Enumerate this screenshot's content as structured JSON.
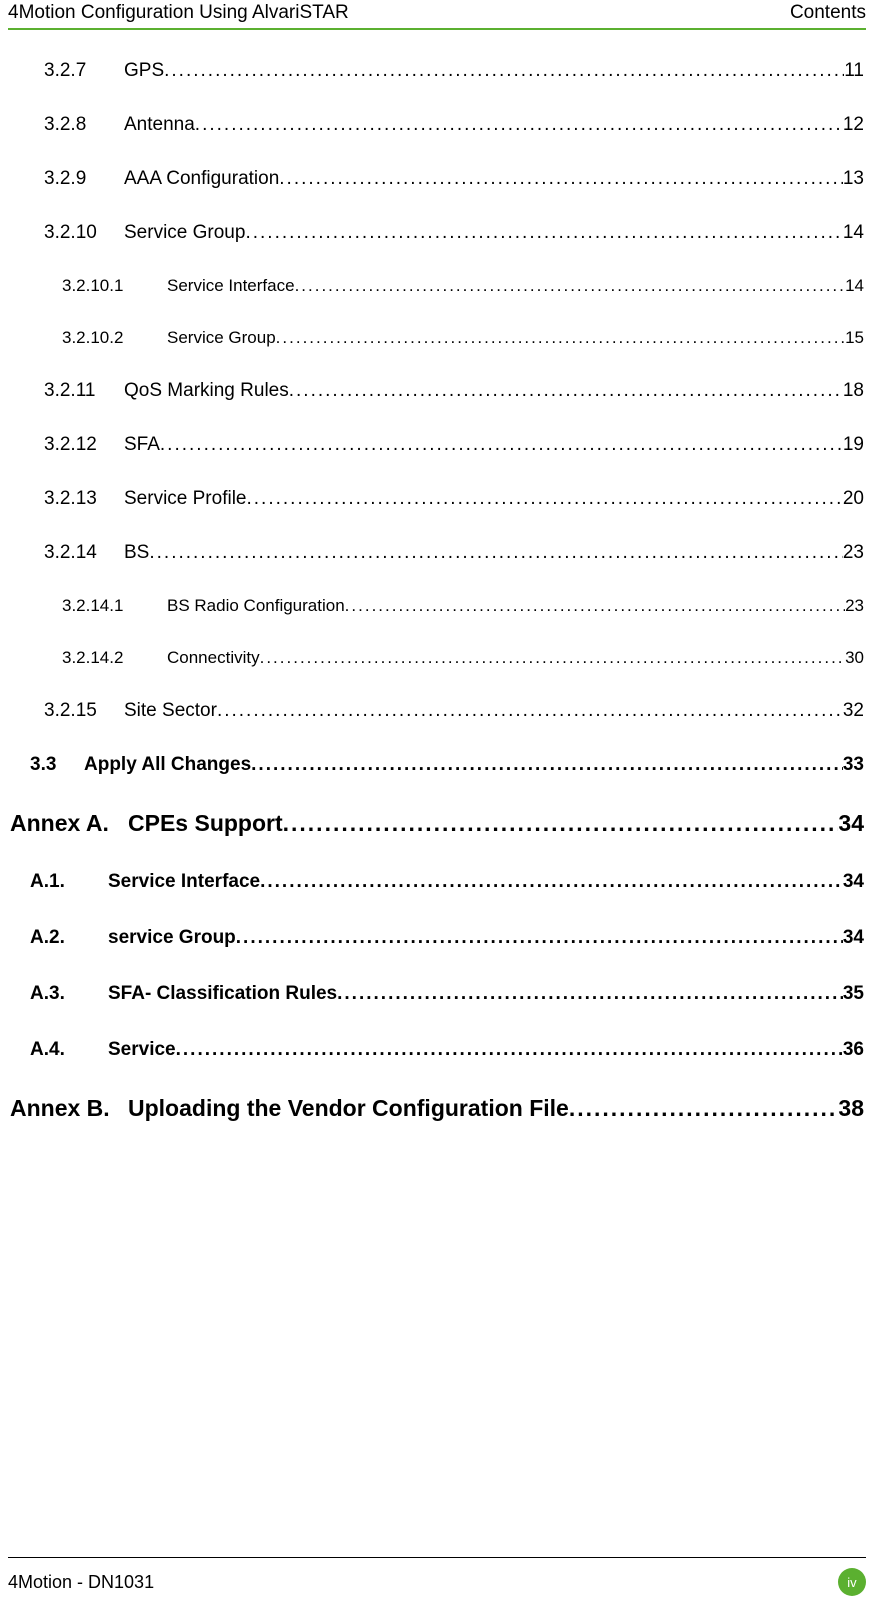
{
  "header": {
    "left": "4Motion Configuration Using AlvariSTAR",
    "right": "Contents"
  },
  "toc": [
    {
      "level": "level1",
      "num": "3.2.7",
      "title": "GPS",
      "page": "11"
    },
    {
      "level": "level1",
      "num": "3.2.8",
      "title": "Antenna",
      "page": "12"
    },
    {
      "level": "level1",
      "num": "3.2.9",
      "title": "AAA Configuration ",
      "page": "13"
    },
    {
      "level": "level1",
      "num": "3.2.10",
      "title": "Service Group",
      "page": "14"
    },
    {
      "level": "level2",
      "num": "3.2.10.1",
      "title": "Service Interface ",
      "page": "14"
    },
    {
      "level": "level2",
      "num": "3.2.10.2",
      "title": "Service Group ",
      "page": "15"
    },
    {
      "level": "level1",
      "num": "3.2.11",
      "title": "QoS Marking Rules",
      "page": "18"
    },
    {
      "level": "level1",
      "num": "3.2.12",
      "title": "SFA ",
      "page": "19"
    },
    {
      "level": "level1",
      "num": "3.2.13",
      "title": "Service Profile",
      "page": "20"
    },
    {
      "level": "level1",
      "num": "3.2.14",
      "title": "BS ",
      "page": "23"
    },
    {
      "level": "level2",
      "num": "3.2.14.1",
      "title": "BS Radio Configuration",
      "page": "23"
    },
    {
      "level": "level2",
      "num": "3.2.14.2",
      "title": "Connectivity",
      "page": "30"
    },
    {
      "level": "level1",
      "num": "3.2.15",
      "title": "Site Sector ",
      "page": "32"
    },
    {
      "level": "subsection",
      "num": "3.3",
      "title": "Apply All Changes ",
      "page": "33"
    },
    {
      "level": "heading-section",
      "num": "Annex A.",
      "title": "CPEs Support",
      "page": "34"
    },
    {
      "level": "annex-sub",
      "num": "A.1.",
      "title": "Service Interface",
      "page": "34"
    },
    {
      "level": "annex-sub",
      "num": "A.2.",
      "title": "service Group ",
      "page": "34"
    },
    {
      "level": "annex-sub",
      "num": "A.3.",
      "title": "SFA- Classification Rules",
      "page": "35"
    },
    {
      "level": "annex-sub",
      "num": "A.4.",
      "title": "Service",
      "page": "36"
    },
    {
      "level": "heading-section",
      "num": "Annex B.",
      "title": "Uploading the Vendor Configuration File ",
      "page": "38"
    }
  ],
  "footer": {
    "left": "4Motion - DN1031",
    "page": "iv"
  },
  "colors": {
    "divider": "#5bb030",
    "badge_bg": "#5bb030",
    "badge_fg": "#ffffff"
  }
}
